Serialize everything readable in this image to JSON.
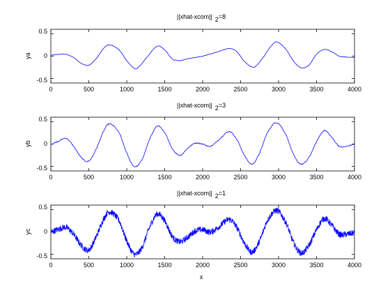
{
  "figure": {
    "xlabel": "x",
    "colors": {
      "line": "#0000ff",
      "axes": "#000000",
      "background": "#ffffff"
    }
  },
  "chart_data": [
    {
      "type": "line",
      "title_main": "||xhat-xcom||",
      "title_sub": "2",
      "title_suffix": "=8",
      "xlabel": "",
      "ylabel": "ya",
      "xlim": [
        0,
        4000
      ],
      "ylim": [
        -0.6,
        0.6
      ],
      "xticks": [
        "0",
        "500",
        "1000",
        "1500",
        "2000",
        "2500",
        "3000",
        "3500",
        "4000"
      ],
      "yticks": [
        "-0.5",
        "0",
        "0.5"
      ],
      "series": [
        {
          "x": [
            0,
            100,
            200,
            300,
            400,
            500,
            600,
            700,
            775,
            900,
            1000,
            1100,
            1150,
            1250,
            1400,
            1500,
            1600,
            1650,
            1700,
            1800,
            1900,
            2000,
            2100,
            2200,
            2350,
            2450,
            2550,
            2650,
            2700,
            2800,
            2900,
            2975,
            3100,
            3200,
            3300,
            3400,
            3500,
            3600,
            3700,
            3800,
            3900,
            4000
          ],
          "y": [
            0.02,
            0.04,
            0.04,
            -0.03,
            -0.16,
            -0.2,
            -0.05,
            0.18,
            0.25,
            0.14,
            -0.1,
            -0.27,
            -0.25,
            -0.05,
            0.22,
            0.14,
            -0.06,
            -0.09,
            -0.1,
            -0.06,
            -0.03,
            0.0,
            0.05,
            0.1,
            0.17,
            0.1,
            -0.12,
            -0.24,
            -0.22,
            -0.02,
            0.22,
            0.32,
            0.15,
            -0.12,
            -0.26,
            -0.2,
            0.04,
            0.15,
            0.1,
            0.0,
            -0.02,
            -0.03
          ]
        }
      ],
      "noise": 0.004
    },
    {
      "type": "line",
      "title_main": "||xhat-xcom||",
      "title_sub": "2",
      "title_suffix": "=3",
      "xlabel": "",
      "ylabel": "yb",
      "xlim": [
        0,
        4000
      ],
      "ylim": [
        -0.6,
        0.6
      ],
      "xticks": [
        "0",
        "500",
        "1000",
        "1500",
        "2000",
        "2500",
        "3000",
        "3500",
        "4000"
      ],
      "yticks": [
        "-0.5",
        "0",
        "0.5"
      ],
      "series": [
        {
          "x": [
            0,
            100,
            200,
            300,
            400,
            500,
            600,
            700,
            775,
            900,
            1000,
            1100,
            1200,
            1300,
            1400,
            1500,
            1600,
            1700,
            1800,
            1900,
            2000,
            2100,
            2200,
            2350,
            2450,
            2550,
            2650,
            2750,
            2850,
            2975,
            3100,
            3200,
            3300,
            3400,
            3500,
            3600,
            3700,
            3800,
            3900,
            4000
          ],
          "y": [
            0.0,
            0.06,
            0.13,
            -0.05,
            -0.3,
            -0.38,
            -0.1,
            0.3,
            0.45,
            0.25,
            -0.2,
            -0.5,
            -0.35,
            0.1,
            0.4,
            0.25,
            -0.1,
            -0.25,
            -0.1,
            0.02,
            0.0,
            -0.05,
            0.08,
            0.28,
            0.1,
            -0.25,
            -0.45,
            -0.2,
            0.25,
            0.48,
            0.2,
            -0.25,
            -0.45,
            -0.3,
            0.05,
            0.3,
            0.15,
            -0.05,
            -0.05,
            0.0
          ]
        }
      ],
      "noise": 0.012
    },
    {
      "type": "line",
      "title_main": "||xhat-xcom||",
      "title_sub": "2",
      "title_suffix": "=1",
      "xlabel": "x",
      "ylabel": "yc",
      "xlim": [
        0,
        4000
      ],
      "ylim": [
        -0.6,
        0.6
      ],
      "xticks": [
        "0",
        "500",
        "1000",
        "1500",
        "2000",
        "2500",
        "3000",
        "3500",
        "4000"
      ],
      "yticks": [
        "-0.5",
        "0",
        "0.5"
      ],
      "series": [
        {
          "x": [
            0,
            100,
            200,
            300,
            400,
            500,
            600,
            700,
            775,
            900,
            1000,
            1100,
            1200,
            1300,
            1400,
            1500,
            1600,
            1700,
            1800,
            1900,
            2000,
            2100,
            2200,
            2350,
            2450,
            2550,
            2650,
            2750,
            2850,
            2975,
            3100,
            3200,
            3300,
            3400,
            3500,
            3600,
            3700,
            3800,
            3900,
            4000
          ],
          "y": [
            0.0,
            0.06,
            0.1,
            -0.05,
            -0.3,
            -0.4,
            -0.1,
            0.3,
            0.45,
            0.25,
            -0.2,
            -0.5,
            -0.35,
            0.1,
            0.4,
            0.25,
            -0.1,
            -0.22,
            -0.12,
            0.02,
            0.05,
            0.0,
            0.1,
            0.28,
            0.1,
            -0.25,
            -0.45,
            -0.2,
            0.25,
            0.48,
            0.2,
            -0.25,
            -0.47,
            -0.3,
            0.05,
            0.3,
            0.15,
            -0.05,
            -0.05,
            -0.02
          ]
        }
      ],
      "noise": 0.07
    }
  ]
}
